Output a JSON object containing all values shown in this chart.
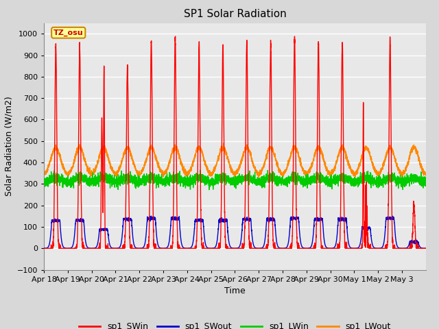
{
  "title": "SP1 Solar Radiation",
  "xlabel": "Time",
  "ylabel": "Solar Radiation (W/m2)",
  "ylim": [
    -100,
    1050
  ],
  "fig_bg_color": "#d8d8d8",
  "plot_bg_color": "#e8e8e8",
  "grid_color": "#ffffff",
  "tz_label": "TZ_osu",
  "tz_box_color": "#ffff99",
  "tz_border_color": "#cc8800",
  "tz_text_color": "#cc0000",
  "legend_entries": [
    "sp1_SWin",
    "sp1_SWout",
    "sp1_LWin",
    "sp1_LWout"
  ],
  "legend_colors": [
    "#ff0000",
    "#0000cc",
    "#00cc00",
    "#ff8800"
  ],
  "line_width": 1.0,
  "pts_per_day": 288,
  "total_days": 16,
  "SWin_peaks": [
    950,
    940,
    810,
    850,
    970,
    985,
    955,
    945,
    965,
    965,
    975,
    965,
    960,
    670,
    975,
    200
  ],
  "SWout_peaks": [
    130,
    130,
    110,
    135,
    140,
    140,
    130,
    130,
    135,
    135,
    140,
    135,
    135,
    95,
    140,
    30
  ],
  "LWin_base": 320,
  "LWout_base": 340,
  "LWout_day_amp": 130,
  "x_tick_labels": [
    "Apr 18",
    "Apr 19",
    "Apr 20",
    "Apr 21",
    "Apr 22",
    "Apr 23",
    "Apr 24",
    "Apr 25",
    "Apr 26",
    "Apr 27",
    "Apr 28",
    "Apr 29",
    "Apr 30",
    "May 1",
    "May 2",
    "May 3"
  ]
}
